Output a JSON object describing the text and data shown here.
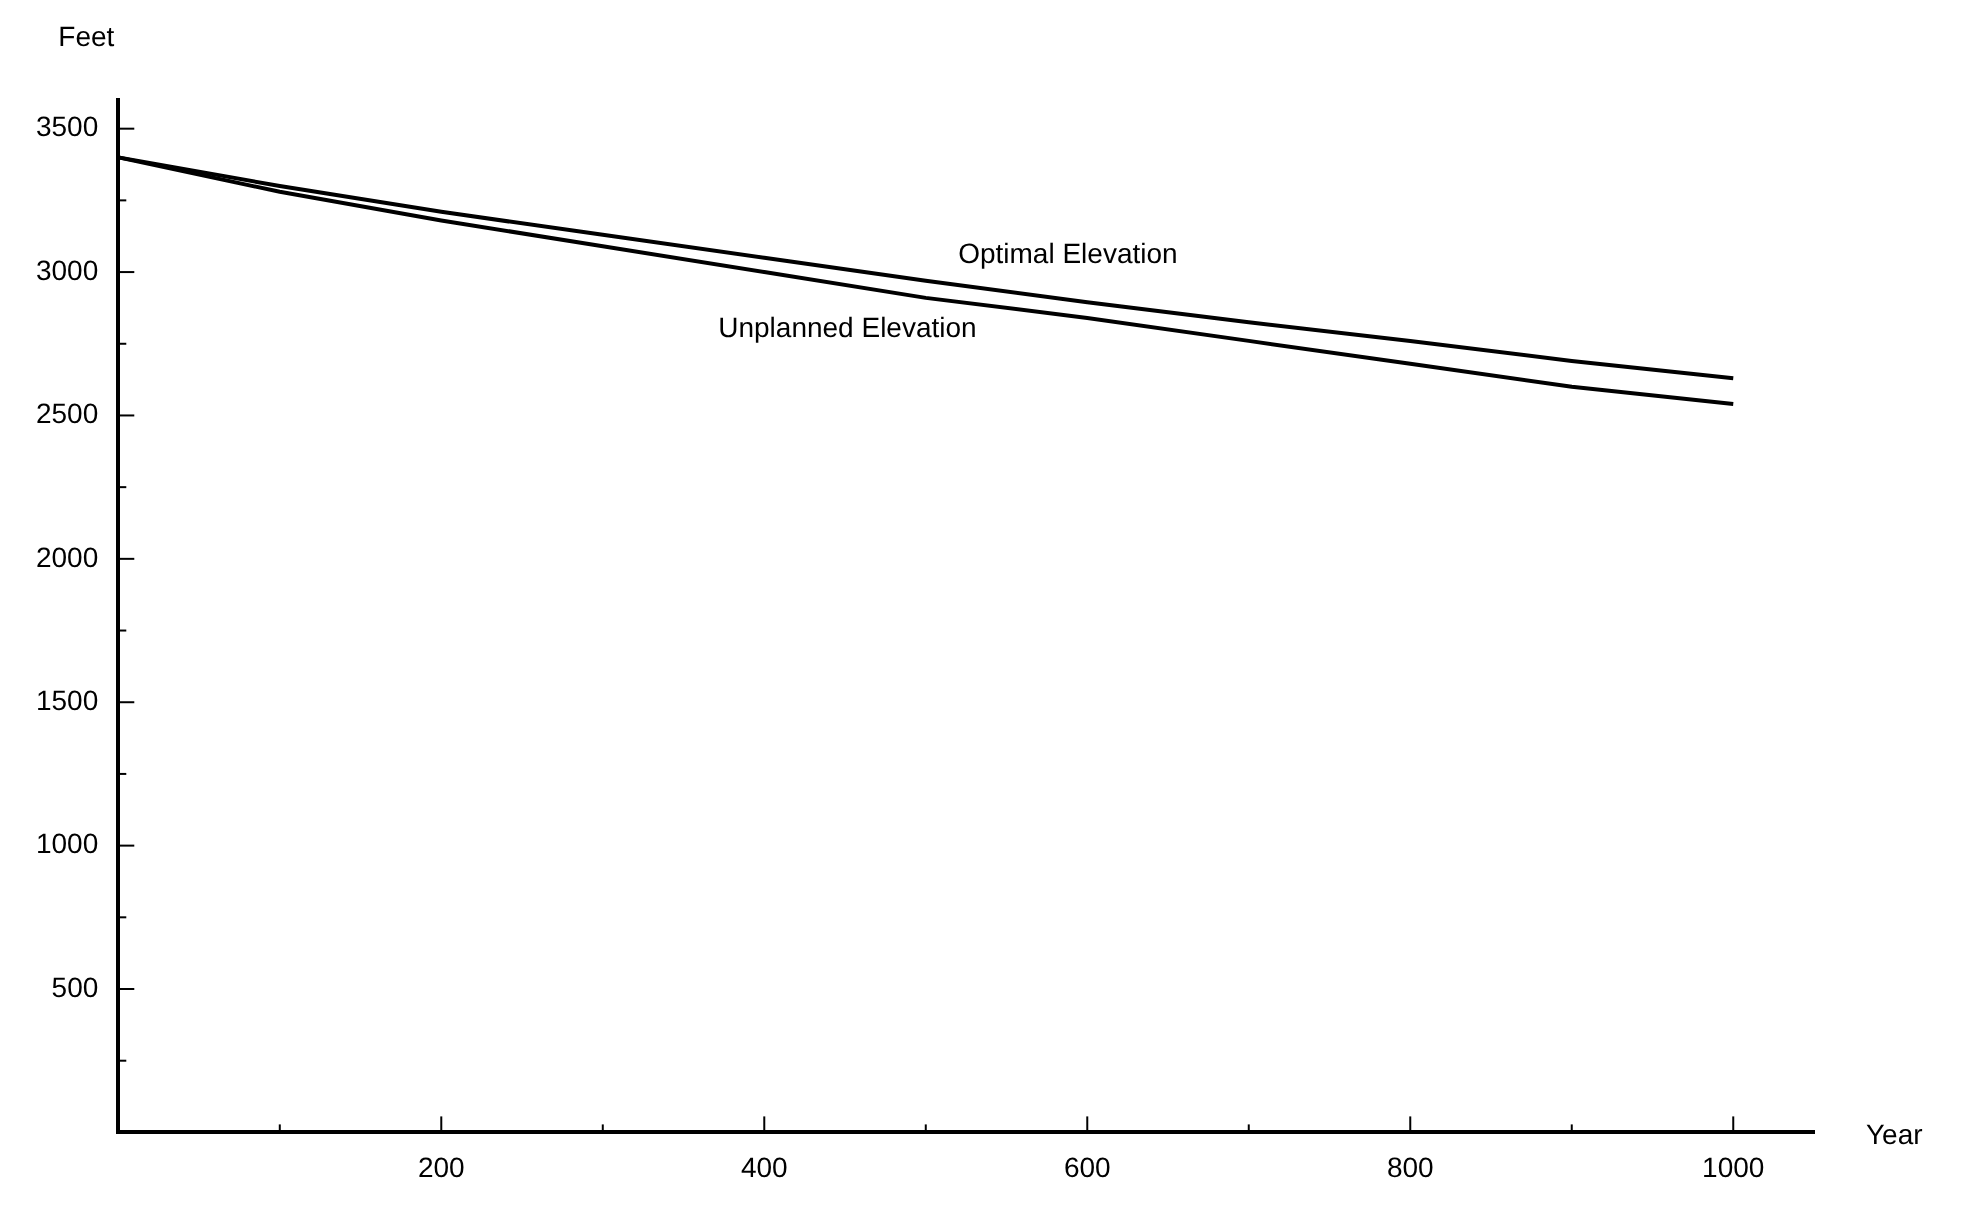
{
  "chart_data": {
    "type": "line",
    "xlabel": "Year",
    "ylabel": "Feet",
    "x": [
      0,
      100,
      200,
      300,
      400,
      500,
      600,
      700,
      800,
      900,
      1000
    ],
    "series": [
      {
        "name": "Optimal Elevation",
        "color": "#000000",
        "values": [
          3400,
          3300,
          3210,
          3130,
          3050,
          2970,
          2895,
          2825,
          2760,
          2690,
          2630
        ]
      },
      {
        "name": "Unplanned Elevation",
        "color": "#000000",
        "values": [
          3400,
          3280,
          3180,
          3090,
          3000,
          2910,
          2840,
          2760,
          2680,
          2600,
          2540
        ]
      }
    ],
    "xlim": [
      0,
      1050
    ],
    "ylim": [
      0,
      3600
    ],
    "xticks": [
      {
        "value": 100,
        "label": null
      },
      200,
      {
        "value": 300,
        "label": null
      },
      400,
      {
        "value": 500,
        "label": null
      },
      600,
      {
        "value": 700,
        "label": null
      },
      800,
      {
        "value": 900,
        "label": null
      },
      1000
    ],
    "yticks": [
      {
        "value": 250,
        "label": null
      },
      500,
      {
        "value": 750,
        "label": null
      },
      1000,
      {
        "value": 1250,
        "label": null
      },
      1500,
      {
        "value": 1750,
        "label": null
      },
      2000,
      {
        "value": 2250,
        "label": null
      },
      2500,
      {
        "value": 2750,
        "label": null
      },
      3000,
      {
        "value": 3250,
        "label": null
      },
      3500
    ],
    "grid": false,
    "legend": false,
    "marker": "none",
    "line_style": "solid"
  }
}
